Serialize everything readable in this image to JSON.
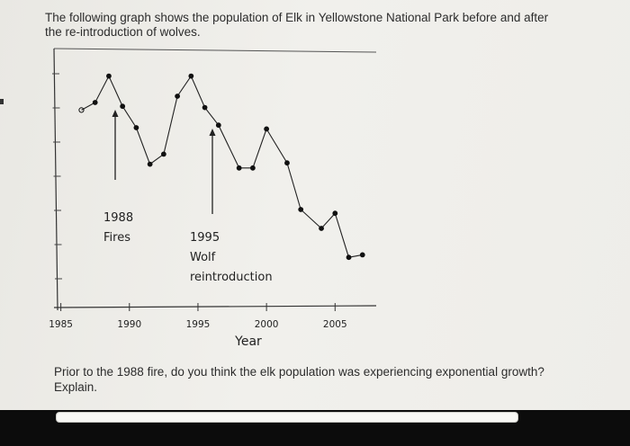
{
  "intro_text": "The following graph shows the population of Elk in Yellowstone National Park before and after the re-introduction of wolves.",
  "question_text": "Prior to the 1988 fire, do you think the elk population was experiencing exponential growth? Explain.",
  "chart_data": {
    "type": "line",
    "title": "",
    "xlabel": "Year",
    "ylabel": "",
    "xlim": [
      1984.5,
      2008
    ],
    "x_ticks": [
      1985,
      1990,
      1995,
      2000,
      2005
    ],
    "grid": false,
    "series": [
      {
        "values": [
          {
            "x": 1986.5,
            "y": 0.64
          },
          {
            "x": 1987.5,
            "y": 0.7
          },
          {
            "x": 1988.5,
            "y": 0.91
          },
          {
            "x": 1989.5,
            "y": 0.67
          },
          {
            "x": 1990.5,
            "y": 0.5
          },
          {
            "x": 1991.5,
            "y": 0.21
          },
          {
            "x": 1992.5,
            "y": 0.29
          },
          {
            "x": 1993.5,
            "y": 0.75
          },
          {
            "x": 1994.5,
            "y": 0.91
          },
          {
            "x": 1995.5,
            "y": 0.66
          },
          {
            "x": 1996.5,
            "y": 0.52
          },
          {
            "x": 1998.0,
            "y": 0.18
          },
          {
            "x": 1999.0,
            "y": 0.18
          },
          {
            "x": 2000.0,
            "y": 0.49
          },
          {
            "x": 2001.5,
            "y": 0.22
          },
          {
            "x": 2002.5,
            "y": -0.15
          },
          {
            "x": 2004.0,
            "y": -0.3
          },
          {
            "x": 2005.0,
            "y": -0.18
          },
          {
            "x": 2006.0,
            "y": -0.53
          },
          {
            "x": 2007.0,
            "y": -0.51
          }
        ]
      }
    ],
    "annotations": [
      {
        "x": 1988,
        "lines": [
          "1988",
          "Fires"
        ]
      },
      {
        "x": 1995,
        "lines": [
          "1995",
          "Wolf",
          "reintroduction"
        ]
      }
    ]
  }
}
